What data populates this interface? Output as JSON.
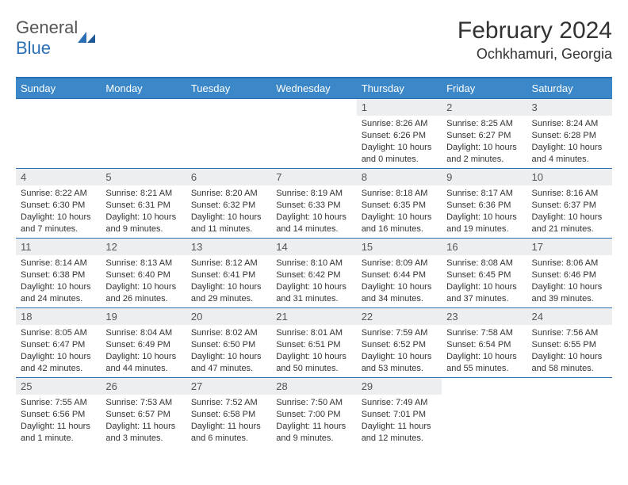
{
  "logo": {
    "word1": "General",
    "word2": "Blue"
  },
  "title": "February 2024",
  "location": "Ochkhamuri, Georgia",
  "colors": {
    "header_bg": "#3b87c8",
    "accent": "#2a6fb5",
    "daynum_bg": "#eceef0",
    "text": "#333333",
    "muted": "#555555",
    "background": "#ffffff"
  },
  "weekdays": [
    "Sunday",
    "Monday",
    "Tuesday",
    "Wednesday",
    "Thursday",
    "Friday",
    "Saturday"
  ],
  "weeks": [
    [
      {
        "day": "",
        "lines": []
      },
      {
        "day": "",
        "lines": []
      },
      {
        "day": "",
        "lines": []
      },
      {
        "day": "",
        "lines": []
      },
      {
        "day": "1",
        "lines": [
          "Sunrise: 8:26 AM",
          "Sunset: 6:26 PM",
          "Daylight: 10 hours and 0 minutes."
        ]
      },
      {
        "day": "2",
        "lines": [
          "Sunrise: 8:25 AM",
          "Sunset: 6:27 PM",
          "Daylight: 10 hours and 2 minutes."
        ]
      },
      {
        "day": "3",
        "lines": [
          "Sunrise: 8:24 AM",
          "Sunset: 6:28 PM",
          "Daylight: 10 hours and 4 minutes."
        ]
      }
    ],
    [
      {
        "day": "4",
        "lines": [
          "Sunrise: 8:22 AM",
          "Sunset: 6:30 PM",
          "Daylight: 10 hours and 7 minutes."
        ]
      },
      {
        "day": "5",
        "lines": [
          "Sunrise: 8:21 AM",
          "Sunset: 6:31 PM",
          "Daylight: 10 hours and 9 minutes."
        ]
      },
      {
        "day": "6",
        "lines": [
          "Sunrise: 8:20 AM",
          "Sunset: 6:32 PM",
          "Daylight: 10 hours and 11 minutes."
        ]
      },
      {
        "day": "7",
        "lines": [
          "Sunrise: 8:19 AM",
          "Sunset: 6:33 PM",
          "Daylight: 10 hours and 14 minutes."
        ]
      },
      {
        "day": "8",
        "lines": [
          "Sunrise: 8:18 AM",
          "Sunset: 6:35 PM",
          "Daylight: 10 hours and 16 minutes."
        ]
      },
      {
        "day": "9",
        "lines": [
          "Sunrise: 8:17 AM",
          "Sunset: 6:36 PM",
          "Daylight: 10 hours and 19 minutes."
        ]
      },
      {
        "day": "10",
        "lines": [
          "Sunrise: 8:16 AM",
          "Sunset: 6:37 PM",
          "Daylight: 10 hours and 21 minutes."
        ]
      }
    ],
    [
      {
        "day": "11",
        "lines": [
          "Sunrise: 8:14 AM",
          "Sunset: 6:38 PM",
          "Daylight: 10 hours and 24 minutes."
        ]
      },
      {
        "day": "12",
        "lines": [
          "Sunrise: 8:13 AM",
          "Sunset: 6:40 PM",
          "Daylight: 10 hours and 26 minutes."
        ]
      },
      {
        "day": "13",
        "lines": [
          "Sunrise: 8:12 AM",
          "Sunset: 6:41 PM",
          "Daylight: 10 hours and 29 minutes."
        ]
      },
      {
        "day": "14",
        "lines": [
          "Sunrise: 8:10 AM",
          "Sunset: 6:42 PM",
          "Daylight: 10 hours and 31 minutes."
        ]
      },
      {
        "day": "15",
        "lines": [
          "Sunrise: 8:09 AM",
          "Sunset: 6:44 PM",
          "Daylight: 10 hours and 34 minutes."
        ]
      },
      {
        "day": "16",
        "lines": [
          "Sunrise: 8:08 AM",
          "Sunset: 6:45 PM",
          "Daylight: 10 hours and 37 minutes."
        ]
      },
      {
        "day": "17",
        "lines": [
          "Sunrise: 8:06 AM",
          "Sunset: 6:46 PM",
          "Daylight: 10 hours and 39 minutes."
        ]
      }
    ],
    [
      {
        "day": "18",
        "lines": [
          "Sunrise: 8:05 AM",
          "Sunset: 6:47 PM",
          "Daylight: 10 hours and 42 minutes."
        ]
      },
      {
        "day": "19",
        "lines": [
          "Sunrise: 8:04 AM",
          "Sunset: 6:49 PM",
          "Daylight: 10 hours and 44 minutes."
        ]
      },
      {
        "day": "20",
        "lines": [
          "Sunrise: 8:02 AM",
          "Sunset: 6:50 PM",
          "Daylight: 10 hours and 47 minutes."
        ]
      },
      {
        "day": "21",
        "lines": [
          "Sunrise: 8:01 AM",
          "Sunset: 6:51 PM",
          "Daylight: 10 hours and 50 minutes."
        ]
      },
      {
        "day": "22",
        "lines": [
          "Sunrise: 7:59 AM",
          "Sunset: 6:52 PM",
          "Daylight: 10 hours and 53 minutes."
        ]
      },
      {
        "day": "23",
        "lines": [
          "Sunrise: 7:58 AM",
          "Sunset: 6:54 PM",
          "Daylight: 10 hours and 55 minutes."
        ]
      },
      {
        "day": "24",
        "lines": [
          "Sunrise: 7:56 AM",
          "Sunset: 6:55 PM",
          "Daylight: 10 hours and 58 minutes."
        ]
      }
    ],
    [
      {
        "day": "25",
        "lines": [
          "Sunrise: 7:55 AM",
          "Sunset: 6:56 PM",
          "Daylight: 11 hours and 1 minute."
        ]
      },
      {
        "day": "26",
        "lines": [
          "Sunrise: 7:53 AM",
          "Sunset: 6:57 PM",
          "Daylight: 11 hours and 3 minutes."
        ]
      },
      {
        "day": "27",
        "lines": [
          "Sunrise: 7:52 AM",
          "Sunset: 6:58 PM",
          "Daylight: 11 hours and 6 minutes."
        ]
      },
      {
        "day": "28",
        "lines": [
          "Sunrise: 7:50 AM",
          "Sunset: 7:00 PM",
          "Daylight: 11 hours and 9 minutes."
        ]
      },
      {
        "day": "29",
        "lines": [
          "Sunrise: 7:49 AM",
          "Sunset: 7:01 PM",
          "Daylight: 11 hours and 12 minutes."
        ]
      },
      {
        "day": "",
        "lines": []
      },
      {
        "day": "",
        "lines": []
      }
    ]
  ]
}
